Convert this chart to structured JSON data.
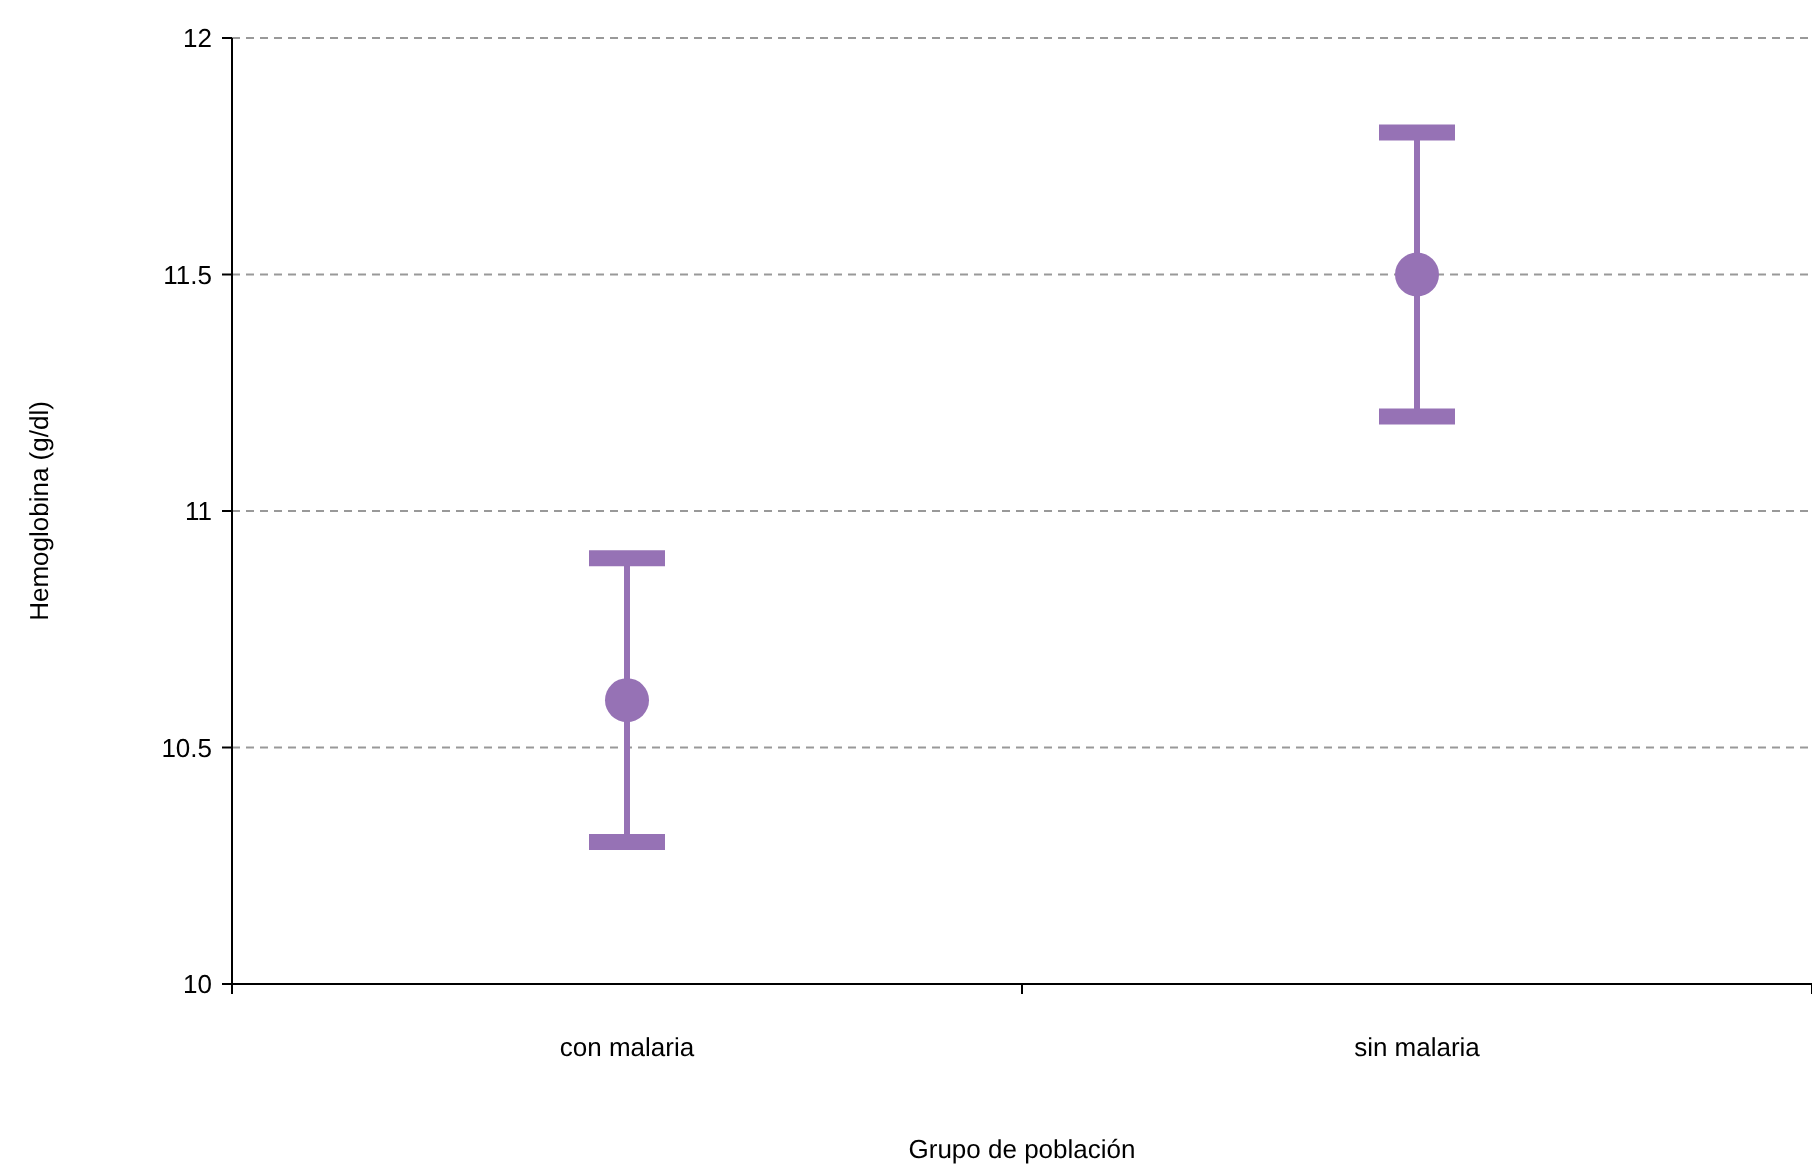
{
  "chart_data": {
    "type": "scatter",
    "xlabel": "Grupo de población",
    "ylabel": "Hemoglobina (g/dl)",
    "categories": [
      "con malaria",
      "sin malaria"
    ],
    "values": [
      10.6,
      11.5
    ],
    "errors": [
      0.3,
      0.3
    ],
    "color": "#9672b5",
    "ylim": [
      10,
      12
    ],
    "yticks": [
      10,
      10.5,
      11,
      11.5,
      12
    ],
    "grid": "y",
    "marker": "circle"
  }
}
